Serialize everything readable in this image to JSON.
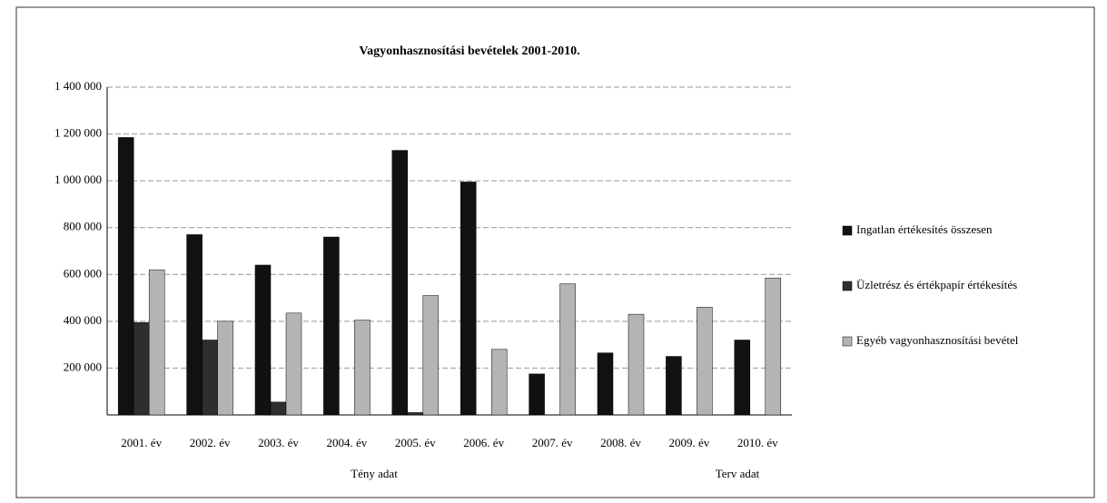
{
  "chart_data": {
    "type": "bar",
    "title": "Vagyonhasznosítási bevételek 2001-2010.",
    "categories": [
      "2001. év",
      "2002. év",
      "2003. év",
      "2004. év",
      "2005. év",
      "2006. év",
      "2007. év",
      "2008. év",
      "2009. év",
      "2010. év"
    ],
    "series": [
      {
        "name": "Ingatlan értékesítés összesen",
        "color": "#111111",
        "values": [
          1185000,
          770000,
          640000,
          760000,
          1130000,
          995000,
          175000,
          265000,
          250000,
          320000
        ]
      },
      {
        "name": "Üzletrész és értékpapír értékesítés",
        "color": "#2e2e2e",
        "values": [
          395000,
          320000,
          55000,
          0,
          10000,
          0,
          0,
          0,
          0,
          0
        ]
      },
      {
        "name": "Egyéb vagyonhasznosítási bevétel",
        "color": "#b4b4b4",
        "values": [
          620000,
          400000,
          435000,
          405000,
          510000,
          280000,
          560000,
          430000,
          460000,
          585000
        ]
      }
    ],
    "annotations": [
      "Tény adat",
      "Terv adat"
    ],
    "ylim": [
      0,
      1400000
    ],
    "yticks": [
      {
        "value": 200000,
        "label": "200 000"
      },
      {
        "value": 400000,
        "label": "400 000"
      },
      {
        "value": 600000,
        "label": "600 000"
      },
      {
        "value": 800000,
        "label": "800 000"
      },
      {
        "value": 1000000,
        "label": "1 000 000"
      },
      {
        "value": 1200000,
        "label": "1 200 000"
      },
      {
        "value": 1400000,
        "label": "1 400 000"
      }
    ],
    "grid": true,
    "legend": "right"
  }
}
